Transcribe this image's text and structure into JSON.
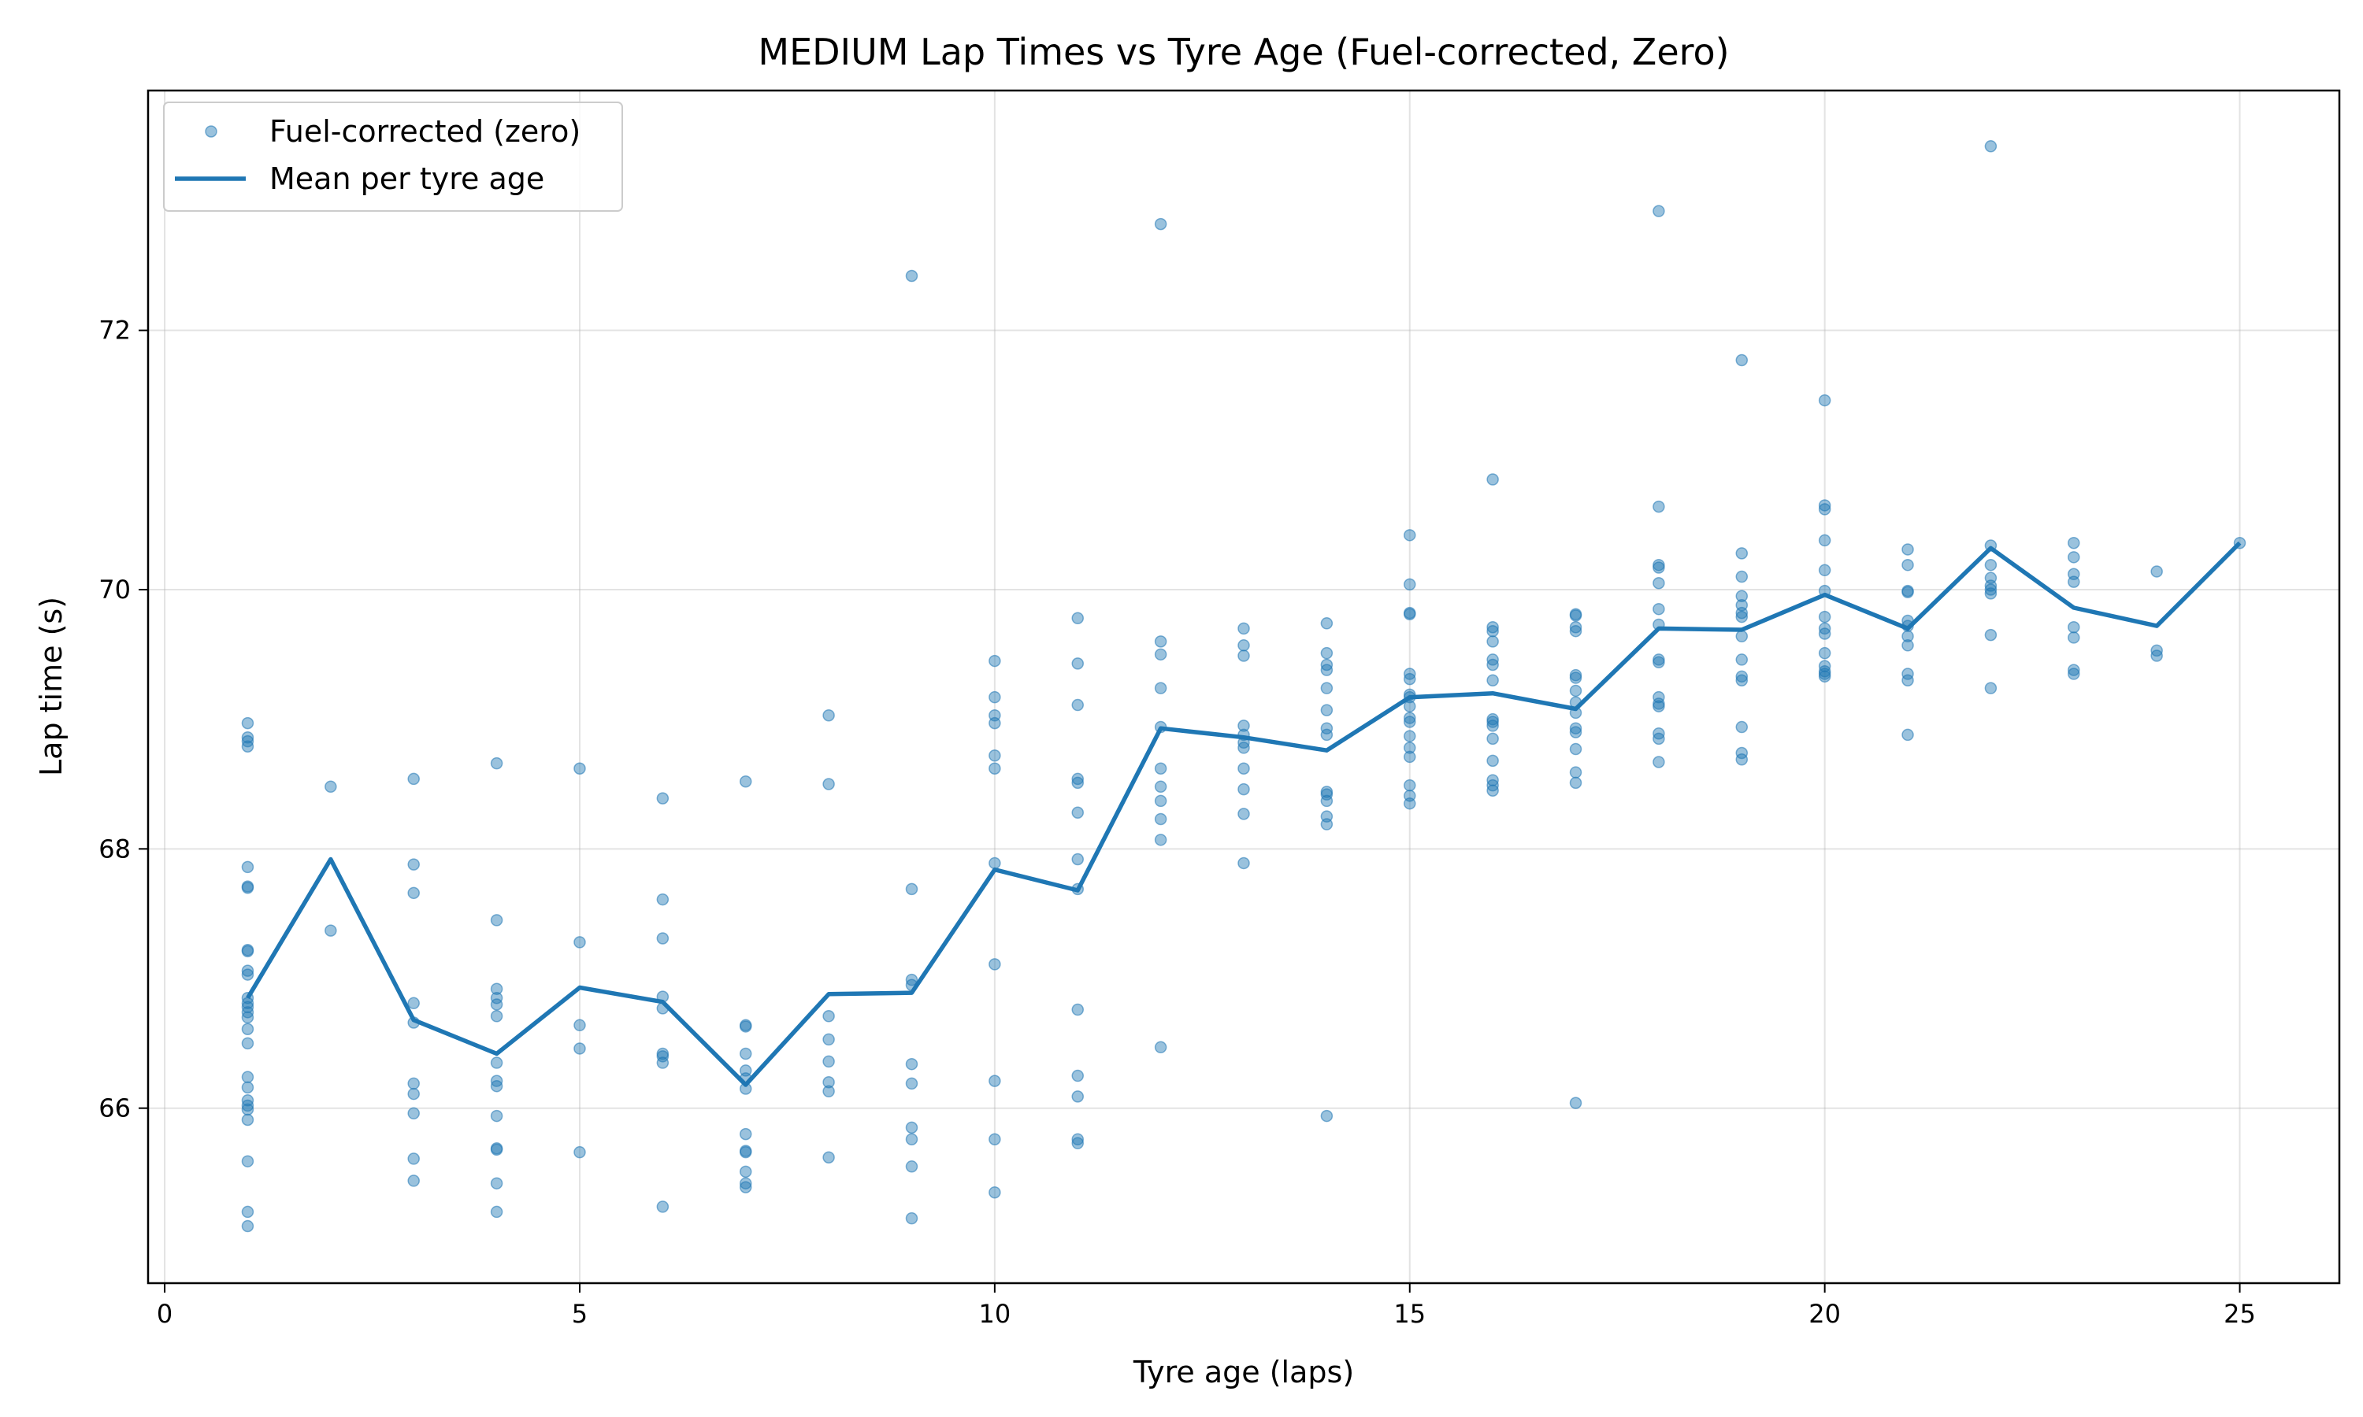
{
  "chart_data": {
    "type": "scatter",
    "title": "MEDIUM Lap Times vs Tyre Age (Fuel-corrected, Zero)",
    "xlabel": "Tyre age (laps)",
    "ylabel": "Lap time (s)",
    "xlim": [
      -0.2,
      26.2
    ],
    "ylim": [
      64.65,
      73.85
    ],
    "xticks": [
      0,
      5,
      10,
      15,
      20,
      25
    ],
    "yticks": [
      66,
      68,
      70,
      72
    ],
    "grid": true,
    "legend_position": "top-left",
    "colors": {
      "series": "#1f77b4"
    },
    "series": [
      {
        "name": "Fuel-corrected (zero)",
        "kind": "scatter",
        "points": [
          [
            1,
            68.97
          ],
          [
            1,
            68.86
          ],
          [
            1,
            68.83
          ],
          [
            1,
            68.79
          ],
          [
            1,
            67.86
          ],
          [
            1,
            67.71
          ],
          [
            1,
            67.7
          ],
          [
            1,
            67.22
          ],
          [
            1,
            67.21
          ],
          [
            1,
            67.06
          ],
          [
            1,
            67.03
          ],
          [
            1,
            66.85
          ],
          [
            1,
            66.81
          ],
          [
            1,
            66.78
          ],
          [
            1,
            66.74
          ],
          [
            1,
            66.7
          ],
          [
            1,
            66.61
          ],
          [
            1,
            66.5
          ],
          [
            1,
            66.24
          ],
          [
            1,
            66.16
          ],
          [
            1,
            66.06
          ],
          [
            1,
            66.02
          ],
          [
            1,
            65.99
          ],
          [
            1,
            65.91
          ],
          [
            1,
            65.59
          ],
          [
            1,
            65.2
          ],
          [
            1,
            65.09
          ],
          [
            2,
            68.48
          ],
          [
            2,
            67.37
          ],
          [
            3,
            68.54
          ],
          [
            3,
            67.88
          ],
          [
            3,
            67.66
          ],
          [
            3,
            66.81
          ],
          [
            3,
            66.66
          ],
          [
            3,
            66.19
          ],
          [
            3,
            66.11
          ],
          [
            3,
            65.96
          ],
          [
            3,
            65.61
          ],
          [
            3,
            65.44
          ],
          [
            4,
            68.66
          ],
          [
            4,
            67.45
          ],
          [
            4,
            66.92
          ],
          [
            4,
            66.85
          ],
          [
            4,
            66.8
          ],
          [
            4,
            66.71
          ],
          [
            4,
            66.35
          ],
          [
            4,
            66.21
          ],
          [
            4,
            66.17
          ],
          [
            4,
            65.94
          ],
          [
            4,
            65.69
          ],
          [
            4,
            65.68
          ],
          [
            4,
            65.42
          ],
          [
            4,
            65.2
          ],
          [
            5,
            68.62
          ],
          [
            5,
            67.28
          ],
          [
            5,
            66.64
          ],
          [
            5,
            66.46
          ],
          [
            5,
            65.66
          ],
          [
            6,
            68.39
          ],
          [
            6,
            67.61
          ],
          [
            6,
            67.31
          ],
          [
            6,
            66.86
          ],
          [
            6,
            66.77
          ],
          [
            6,
            66.42
          ],
          [
            6,
            66.4
          ],
          [
            6,
            66.35
          ],
          [
            6,
            65.24
          ],
          [
            7,
            68.52
          ],
          [
            7,
            66.64
          ],
          [
            7,
            66.63
          ],
          [
            7,
            66.42
          ],
          [
            7,
            66.29
          ],
          [
            7,
            66.23
          ],
          [
            7,
            66.15
          ],
          [
            7,
            65.8
          ],
          [
            7,
            65.67
          ],
          [
            7,
            65.66
          ],
          [
            7,
            65.51
          ],
          [
            7,
            65.42
          ],
          [
            7,
            65.39
          ],
          [
            8,
            69.03
          ],
          [
            8,
            68.5
          ],
          [
            8,
            66.71
          ],
          [
            8,
            66.53
          ],
          [
            8,
            66.36
          ],
          [
            8,
            66.2
          ],
          [
            8,
            66.13
          ],
          [
            8,
            65.62
          ],
          [
            9,
            72.42
          ],
          [
            9,
            67.69
          ],
          [
            9,
            66.99
          ],
          [
            9,
            66.95
          ],
          [
            9,
            66.34
          ],
          [
            9,
            66.19
          ],
          [
            9,
            65.85
          ],
          [
            9,
            65.76
          ],
          [
            9,
            65.55
          ],
          [
            9,
            65.15
          ],
          [
            10,
            69.45
          ],
          [
            10,
            69.17
          ],
          [
            10,
            69.03
          ],
          [
            10,
            68.97
          ],
          [
            10,
            68.72
          ],
          [
            10,
            68.62
          ],
          [
            10,
            67.89
          ],
          [
            10,
            67.11
          ],
          [
            10,
            66.21
          ],
          [
            10,
            65.76
          ],
          [
            10,
            65.35
          ],
          [
            11,
            69.78
          ],
          [
            11,
            69.43
          ],
          [
            11,
            69.11
          ],
          [
            11,
            68.54
          ],
          [
            11,
            68.51
          ],
          [
            11,
            68.28
          ],
          [
            11,
            67.92
          ],
          [
            11,
            67.69
          ],
          [
            11,
            66.76
          ],
          [
            11,
            66.25
          ],
          [
            11,
            66.09
          ],
          [
            11,
            65.76
          ],
          [
            11,
            65.73
          ],
          [
            12,
            72.82
          ],
          [
            12,
            69.6
          ],
          [
            12,
            69.5
          ],
          [
            12,
            69.24
          ],
          [
            12,
            68.94
          ],
          [
            12,
            68.62
          ],
          [
            12,
            68.48
          ],
          [
            12,
            68.37
          ],
          [
            12,
            68.23
          ],
          [
            12,
            68.07
          ],
          [
            12,
            66.47
          ],
          [
            13,
            69.7
          ],
          [
            13,
            69.57
          ],
          [
            13,
            69.49
          ],
          [
            13,
            68.95
          ],
          [
            13,
            68.88
          ],
          [
            13,
            68.82
          ],
          [
            13,
            68.78
          ],
          [
            13,
            68.62
          ],
          [
            13,
            68.46
          ],
          [
            13,
            68.27
          ],
          [
            13,
            67.89
          ],
          [
            14,
            69.74
          ],
          [
            14,
            69.51
          ],
          [
            14,
            69.42
          ],
          [
            14,
            69.38
          ],
          [
            14,
            69.24
          ],
          [
            14,
            69.07
          ],
          [
            14,
            68.93
          ],
          [
            14,
            68.88
          ],
          [
            14,
            68.44
          ],
          [
            14,
            68.42
          ],
          [
            14,
            68.37
          ],
          [
            14,
            68.25
          ],
          [
            14,
            68.19
          ],
          [
            14,
            65.94
          ],
          [
            15,
            70.42
          ],
          [
            15,
            70.04
          ],
          [
            15,
            69.82
          ],
          [
            15,
            69.81
          ],
          [
            15,
            69.35
          ],
          [
            15,
            69.31
          ],
          [
            15,
            69.19
          ],
          [
            15,
            69.17
          ],
          [
            15,
            69.1
          ],
          [
            15,
            69.01
          ],
          [
            15,
            68.98
          ],
          [
            15,
            68.87
          ],
          [
            15,
            68.78
          ],
          [
            15,
            68.71
          ],
          [
            15,
            68.49
          ],
          [
            15,
            68.41
          ],
          [
            15,
            68.35
          ],
          [
            16,
            70.85
          ],
          [
            16,
            69.71
          ],
          [
            16,
            69.68
          ],
          [
            16,
            69.6
          ],
          [
            16,
            69.46
          ],
          [
            16,
            69.42
          ],
          [
            16,
            69.3
          ],
          [
            16,
            69.0
          ],
          [
            16,
            68.98
          ],
          [
            16,
            68.95
          ],
          [
            16,
            68.85
          ],
          [
            16,
            68.68
          ],
          [
            16,
            68.53
          ],
          [
            16,
            68.49
          ],
          [
            16,
            68.45
          ],
          [
            17,
            69.81
          ],
          [
            17,
            69.8
          ],
          [
            17,
            69.71
          ],
          [
            17,
            69.68
          ],
          [
            17,
            69.34
          ],
          [
            17,
            69.32
          ],
          [
            17,
            69.22
          ],
          [
            17,
            69.13
          ],
          [
            17,
            69.05
          ],
          [
            17,
            68.93
          ],
          [
            17,
            68.9
          ],
          [
            17,
            68.77
          ],
          [
            17,
            68.59
          ],
          [
            17,
            68.51
          ],
          [
            17,
            66.04
          ],
          [
            18,
            72.92
          ],
          [
            18,
            70.64
          ],
          [
            18,
            70.19
          ],
          [
            18,
            70.17
          ],
          [
            18,
            70.05
          ],
          [
            18,
            69.85
          ],
          [
            18,
            69.73
          ],
          [
            18,
            69.46
          ],
          [
            18,
            69.44
          ],
          [
            18,
            69.17
          ],
          [
            18,
            69.12
          ],
          [
            18,
            69.1
          ],
          [
            18,
            68.89
          ],
          [
            18,
            68.85
          ],
          [
            18,
            68.67
          ],
          [
            19,
            71.77
          ],
          [
            19,
            70.28
          ],
          [
            19,
            70.1
          ],
          [
            19,
            69.95
          ],
          [
            19,
            69.88
          ],
          [
            19,
            69.82
          ],
          [
            19,
            69.79
          ],
          [
            19,
            69.64
          ],
          [
            19,
            69.46
          ],
          [
            19,
            69.33
          ],
          [
            19,
            69.3
          ],
          [
            19,
            68.94
          ],
          [
            19,
            68.74
          ],
          [
            19,
            68.69
          ],
          [
            20,
            71.46
          ],
          [
            20,
            70.65
          ],
          [
            20,
            70.62
          ],
          [
            20,
            70.38
          ],
          [
            20,
            70.15
          ],
          [
            20,
            69.99
          ],
          [
            20,
            69.79
          ],
          [
            20,
            69.7
          ],
          [
            20,
            69.66
          ],
          [
            20,
            69.51
          ],
          [
            20,
            69.41
          ],
          [
            20,
            69.37
          ],
          [
            20,
            69.35
          ],
          [
            20,
            69.33
          ],
          [
            21,
            70.31
          ],
          [
            21,
            70.19
          ],
          [
            21,
            69.99
          ],
          [
            21,
            69.98
          ],
          [
            21,
            69.76
          ],
          [
            21,
            69.72
          ],
          [
            21,
            69.64
          ],
          [
            21,
            69.57
          ],
          [
            21,
            69.35
          ],
          [
            21,
            69.3
          ],
          [
            21,
            68.88
          ],
          [
            22,
            73.42
          ],
          [
            22,
            70.34
          ],
          [
            22,
            70.19
          ],
          [
            22,
            70.09
          ],
          [
            22,
            70.03
          ],
          [
            22,
            70.0
          ],
          [
            22,
            69.97
          ],
          [
            22,
            69.65
          ],
          [
            22,
            69.24
          ],
          [
            23,
            70.36
          ],
          [
            23,
            70.25
          ],
          [
            23,
            70.12
          ],
          [
            23,
            70.06
          ],
          [
            23,
            69.71
          ],
          [
            23,
            69.63
          ],
          [
            23,
            69.38
          ],
          [
            23,
            69.35
          ],
          [
            24,
            70.14
          ],
          [
            24,
            69.53
          ],
          [
            24,
            69.49
          ],
          [
            25,
            70.36
          ]
        ]
      },
      {
        "name": "Mean per tyre age",
        "kind": "line",
        "x": [
          1,
          2,
          3,
          4,
          5,
          6,
          7,
          8,
          9,
          10,
          11,
          12,
          13,
          14,
          15,
          16,
          17,
          18,
          19,
          20,
          21,
          22,
          23,
          24,
          25
        ],
        "y": [
          66.85,
          67.92,
          66.68,
          66.42,
          66.93,
          66.82,
          66.18,
          66.88,
          66.89,
          67.84,
          67.68,
          68.93,
          68.86,
          68.76,
          69.17,
          69.2,
          69.08,
          69.7,
          69.69,
          69.96,
          69.7,
          70.32,
          69.86,
          69.72,
          70.36
        ]
      }
    ]
  }
}
